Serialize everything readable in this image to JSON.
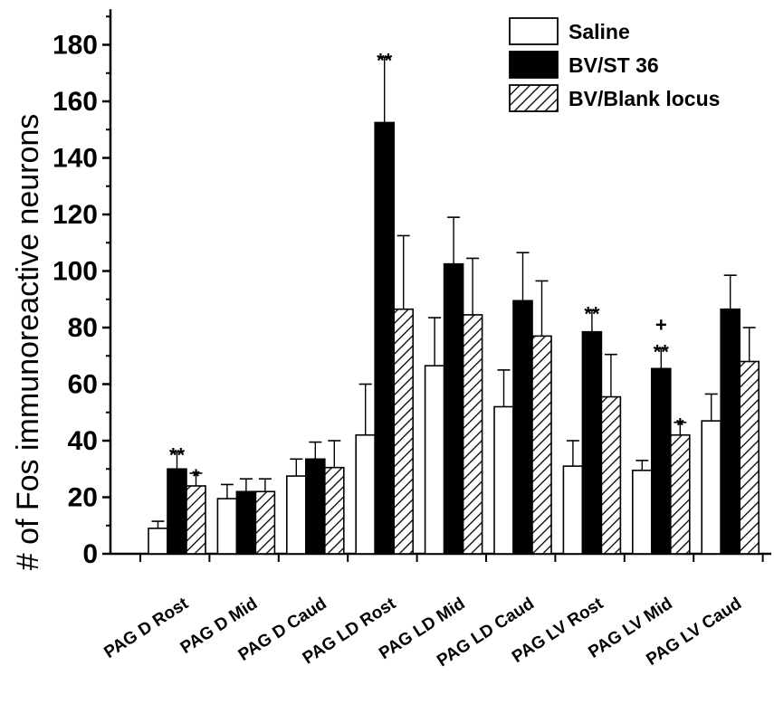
{
  "chart_data": {
    "type": "bar",
    "title": "",
    "xlabel": "",
    "ylabel": "# of Fos immunoreactive neurons",
    "ylim": [
      0,
      190
    ],
    "yticks": [
      0,
      20,
      40,
      60,
      80,
      100,
      120,
      140,
      160,
      180
    ],
    "grid": false,
    "legend_position": "top-right",
    "categories": [
      "PAG D Rost",
      "PAG D Mid",
      "PAG D Caud",
      "PAG LD Rost",
      "PAG LD Mid",
      "PAG LD Caud",
      "PAG LV Rost",
      "PAG LV Mid",
      "PAG LV Caud"
    ],
    "series": [
      {
        "name": "Saline",
        "fill": "white",
        "values": [
          9,
          19.5,
          27.5,
          42,
          66.5,
          52,
          31,
          29.5,
          47
        ],
        "errors": [
          2.5,
          5,
          6,
          18,
          17,
          13,
          9,
          3.5,
          9.5
        ]
      },
      {
        "name": "BV/ST 36",
        "fill": "black",
        "values": [
          30,
          22,
          33.5,
          152.5,
          102.5,
          89.5,
          78.5,
          65.5,
          86.5
        ],
        "errors": [
          6,
          4.5,
          6,
          23,
          16.5,
          17,
          7.5,
          7,
          12
        ]
      },
      {
        "name": "BV/Blank locus",
        "fill": "hatched",
        "values": [
          24,
          22,
          30.5,
          86.5,
          84.5,
          77,
          55.5,
          42,
          68
        ],
        "errors": [
          4.5,
          4.5,
          9.5,
          26,
          20,
          19.5,
          15,
          4.5,
          12
        ]
      }
    ],
    "annotations": [
      {
        "category": "PAG D Rost",
        "series": "BV/ST 36",
        "text": "**"
      },
      {
        "category": "PAG D Rost",
        "series": "BV/Blank locus",
        "text": "*"
      },
      {
        "category": "PAG LD Rost",
        "series": "BV/ST 36",
        "text": "**"
      },
      {
        "category": "PAG LV Rost",
        "series": "BV/ST 36",
        "text": "**"
      },
      {
        "category": "PAG LV Mid",
        "series": "BV/ST 36",
        "text": "**"
      },
      {
        "category": "PAG LV Mid",
        "series": "BV/ST 36",
        "text": "+"
      },
      {
        "category": "PAG LV Mid",
        "series": "BV/Blank locus",
        "text": "*"
      }
    ]
  }
}
